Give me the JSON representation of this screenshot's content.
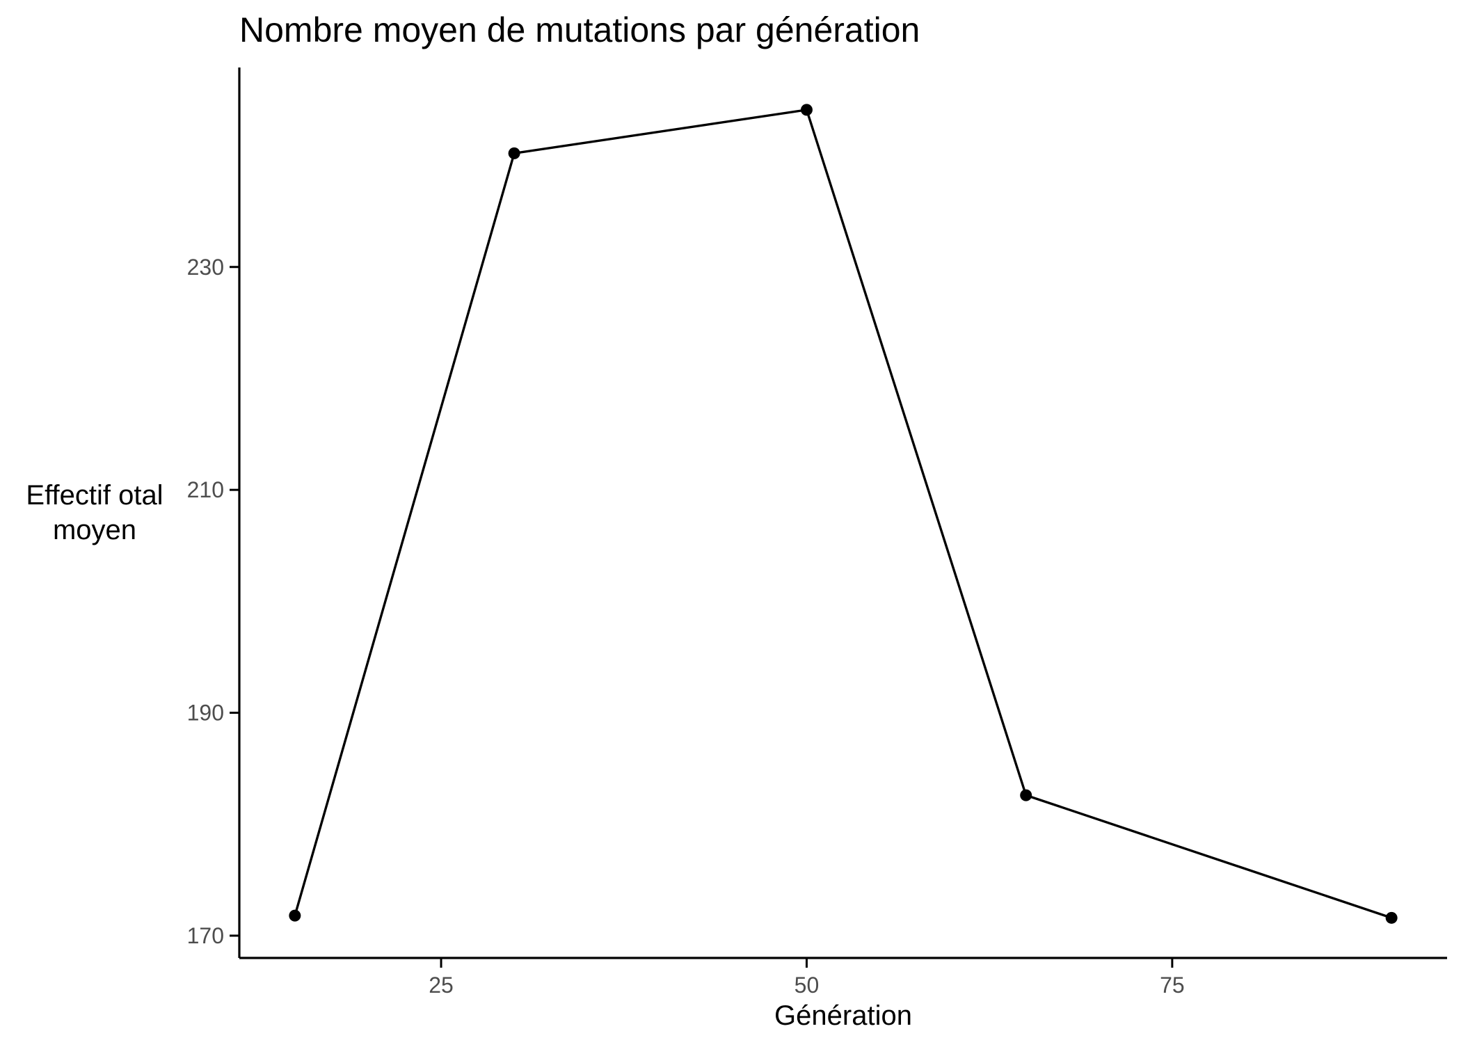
{
  "chart_data": {
    "type": "line",
    "title": "Nombre moyen de mutations par génération",
    "xlabel": "Génération",
    "ylabel_lines": [
      "Effectif otal",
      "moyen"
    ],
    "x_ticks": [
      25,
      50,
      75
    ],
    "y_ticks": [
      170,
      190,
      210,
      230
    ],
    "xlim": [
      11.2,
      93.8
    ],
    "ylim": [
      168.0,
      247.9
    ],
    "grid": false,
    "legend": "none",
    "colors": {
      "line": "#000000",
      "point": "#000000",
      "tick_text": "#4d4d4d"
    },
    "series": [
      {
        "x": [
          15,
          30,
          50,
          65,
          90
        ],
        "y": [
          171.8,
          240.2,
          244.1,
          182.6,
          171.6
        ]
      }
    ]
  }
}
